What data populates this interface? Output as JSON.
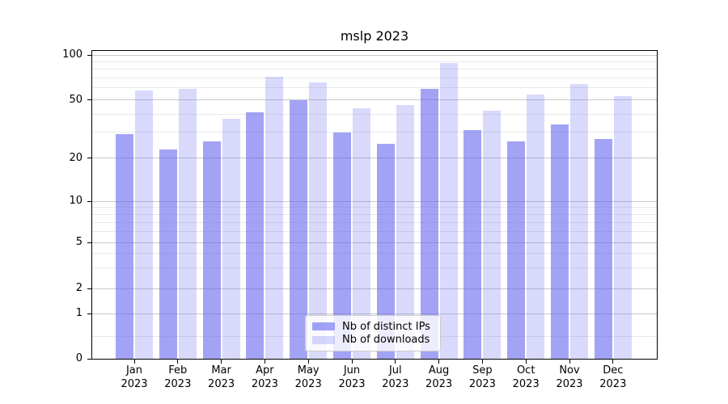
{
  "title": "mslp 2023",
  "y_axis": {
    "ticks": [
      0,
      1,
      2,
      5,
      10,
      20,
      50,
      100
    ],
    "minor_gridlines": [
      0.5,
      3,
      4,
      6,
      7,
      8,
      9,
      30,
      40,
      60,
      70,
      80,
      90
    ]
  },
  "x_axis": {
    "months": [
      "Jan",
      "Feb",
      "Mar",
      "Apr",
      "May",
      "Jun",
      "Jul",
      "Aug",
      "Sep",
      "Oct",
      "Nov",
      "Dec"
    ],
    "year": "2023"
  },
  "colors": {
    "bar_base": "#6666ee",
    "ips_bar": "rgba(102,102,238,0.6)",
    "downloads_bar": "rgba(102,102,238,0.25)",
    "major_grid": "#c9c9c9",
    "minor_grid": "#e9e9e9"
  },
  "chart_data": {
    "type": "bar",
    "title": "mslp 2023",
    "categories": [
      "Jan 2023",
      "Feb 2023",
      "Mar 2023",
      "Apr 2023",
      "May 2023",
      "Jun 2023",
      "Jul 2023",
      "Aug 2023",
      "Sep 2023",
      "Oct 2023",
      "Nov 2023",
      "Dec 2023"
    ],
    "series": [
      {
        "name": "Nb of distinct IPs",
        "color": "rgba(102,102,238,0.6)",
        "values": [
          29,
          23,
          26,
          41,
          50,
          30,
          25,
          59,
          31,
          26,
          34,
          27
        ]
      },
      {
        "name": "Nb of downloads",
        "color": "rgba(102,102,238,0.25)",
        "values": [
          58,
          59,
          37,
          71,
          65,
          44,
          46,
          88,
          42,
          54,
          64,
          53
        ]
      }
    ],
    "xlabel": "",
    "ylabel": "",
    "yscale": "symlog",
    "yticks": [
      0,
      1,
      2,
      5,
      10,
      20,
      50,
      100
    ],
    "ylim": [
      0,
      110
    ],
    "grid": "horizontal major+minor",
    "legend_position": "lower center"
  }
}
